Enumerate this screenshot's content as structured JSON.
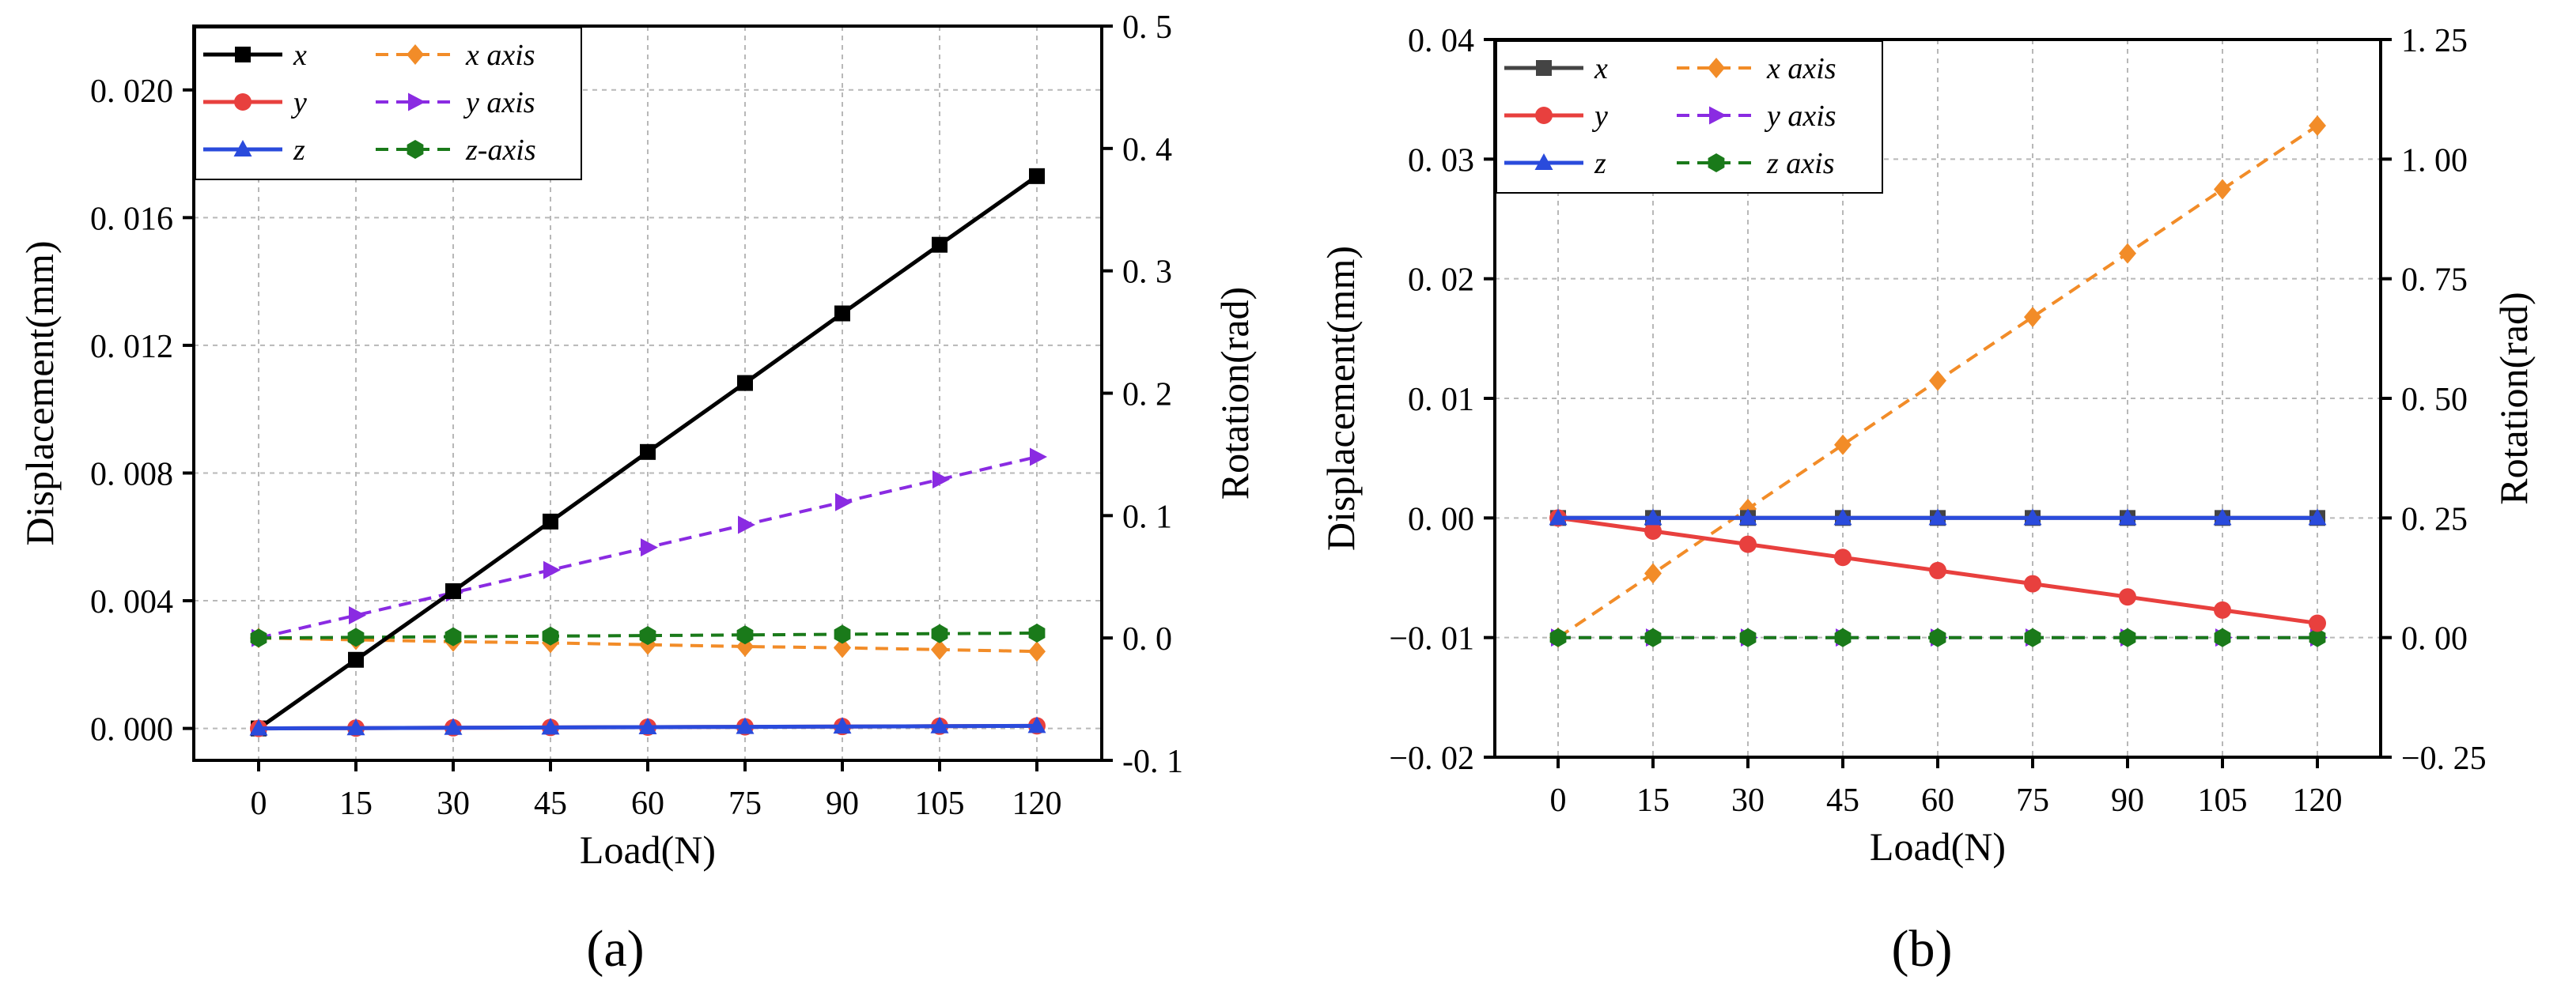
{
  "chart_data": [
    {
      "type": "line",
      "panel_label": "(a)",
      "xlabel": "Load(N)",
      "ylabel": "Displacement(mm)",
      "y2label": "Rotation(rad)",
      "x": [
        0,
        15,
        30,
        45,
        60,
        75,
        90,
        105,
        120
      ],
      "xlim": [
        -10,
        130
      ],
      "ylim": [
        -0.001,
        0.022
      ],
      "y2lim": [
        -0.1,
        0.5
      ],
      "x_ticks": [
        "0",
        "15",
        "30",
        "45",
        "60",
        "75",
        "90",
        "105",
        "120"
      ],
      "y_ticks": [
        0,
        0.004,
        0.008,
        0.012,
        0.016,
        0.02
      ],
      "y_tick_labels": [
        "0. 000",
        "0. 004",
        "0. 008",
        "0. 012",
        "0. 016",
        "0. 020"
      ],
      "y2_ticks": [
        -0.1,
        0,
        0.1,
        0.2,
        0.3,
        0.4,
        0.5
      ],
      "y2_tick_labels": [
        "-0. 1",
        "0. 0",
        "0. 1",
        "0. 2",
        "0. 3",
        "0. 4",
        "0. 5"
      ],
      "grid": true,
      "legend_position": "top-left",
      "series": [
        {
          "name": "x",
          "axis": "left",
          "color": "#000000",
          "marker": "square",
          "dash": false,
          "values": [
            0,
            0.00215,
            0.0043,
            0.00648,
            0.00866,
            0.01082,
            0.013,
            0.01515,
            0.0173
          ]
        },
        {
          "name": "y",
          "axis": "left",
          "color": "#e8403e",
          "marker": "circle",
          "dash": false,
          "values": [
            0,
            1e-05,
            2e-05,
            3e-05,
            4e-05,
            5e-05,
            6e-05,
            7e-05,
            8e-05
          ]
        },
        {
          "name": "z",
          "axis": "left",
          "color": "#2a4bdc",
          "marker": "triangle",
          "dash": false,
          "values": [
            0,
            1e-05,
            2e-05,
            3e-05,
            4e-05,
            5e-05,
            6e-05,
            7e-05,
            8e-05
          ]
        },
        {
          "name": "x axis",
          "axis": "right",
          "color": "#f28c28",
          "marker": "diamond",
          "dash": true,
          "values": [
            0,
            -0.0015,
            -0.003,
            -0.004,
            -0.0055,
            -0.007,
            -0.008,
            -0.0095,
            -0.011
          ]
        },
        {
          "name": "y axis",
          "axis": "right",
          "color": "#8a2be2",
          "marker": "arrow",
          "dash": true,
          "values": [
            0,
            0.0185,
            0.037,
            0.0555,
            0.074,
            0.0925,
            0.111,
            0.1295,
            0.148
          ]
        },
        {
          "name": "z-axis",
          "axis": "right",
          "color": "#1a7a1a",
          "marker": "hexagon",
          "dash": true,
          "values": [
            0,
            0.0005,
            0.001,
            0.0015,
            0.002,
            0.0025,
            0.003,
            0.0035,
            0.004
          ]
        }
      ]
    },
    {
      "type": "line",
      "panel_label": "(b)",
      "xlabel": "Load(N)",
      "ylabel": "Displacement(mm)",
      "y2label": "Rotation(rad)",
      "x": [
        0,
        15,
        30,
        45,
        60,
        75,
        90,
        105,
        120
      ],
      "xlim": [
        -10,
        130
      ],
      "ylim": [
        -0.02,
        0.04
      ],
      "y2lim": [
        -0.25,
        1.25
      ],
      "x_ticks": [
        "0",
        "15",
        "30",
        "45",
        "60",
        "75",
        "90",
        "105",
        "120"
      ],
      "y_ticks": [
        -0.02,
        -0.01,
        0,
        0.01,
        0.02,
        0.03,
        0.04
      ],
      "y_tick_labels": [
        "−0. 02",
        "−0. 01",
        "0. 00",
        "0. 01",
        "0. 02",
        "0. 03",
        "0. 04"
      ],
      "y2_ticks": [
        -0.25,
        0,
        0.25,
        0.5,
        0.75,
        1.0,
        1.25
      ],
      "y2_tick_labels": [
        "−0. 25",
        "0. 00",
        "0. 25",
        "0. 50",
        "0. 75",
        "1. 00",
        "1. 25"
      ],
      "grid": true,
      "legend_position": "top-left",
      "series": [
        {
          "name": "x",
          "axis": "left",
          "color": "#444444",
          "marker": "square",
          "dash": false,
          "values": [
            0,
            0,
            0,
            0,
            0,
            0,
            0,
            0,
            0
          ]
        },
        {
          "name": "y",
          "axis": "left",
          "color": "#e8403e",
          "marker": "circle",
          "dash": false,
          "values": [
            0,
            -0.0011,
            -0.0022,
            -0.0033,
            -0.0044,
            -0.0055,
            -0.0066,
            -0.0077,
            -0.0088
          ]
        },
        {
          "name": "z",
          "axis": "left",
          "color": "#2a4bdc",
          "marker": "triangle",
          "dash": false,
          "values": [
            0,
            0,
            0,
            0,
            0,
            0,
            0,
            0,
            0
          ]
        },
        {
          "name": "x axis",
          "axis": "right",
          "color": "#f28c28",
          "marker": "diamond",
          "dash": true,
          "values": [
            0,
            0.134,
            0.269,
            0.403,
            0.537,
            0.67,
            0.803,
            0.937,
            1.07
          ]
        },
        {
          "name": "y axis",
          "axis": "right",
          "color": "#8a2be2",
          "marker": "arrow",
          "dash": true,
          "values": [
            0,
            0,
            0,
            0,
            0,
            0,
            0,
            0,
            0
          ]
        },
        {
          "name": "z axis",
          "axis": "right",
          "color": "#1a7a1a",
          "marker": "hexagon",
          "dash": true,
          "values": [
            0,
            0,
            0,
            0,
            0,
            0,
            0,
            0,
            0
          ]
        }
      ]
    }
  ]
}
